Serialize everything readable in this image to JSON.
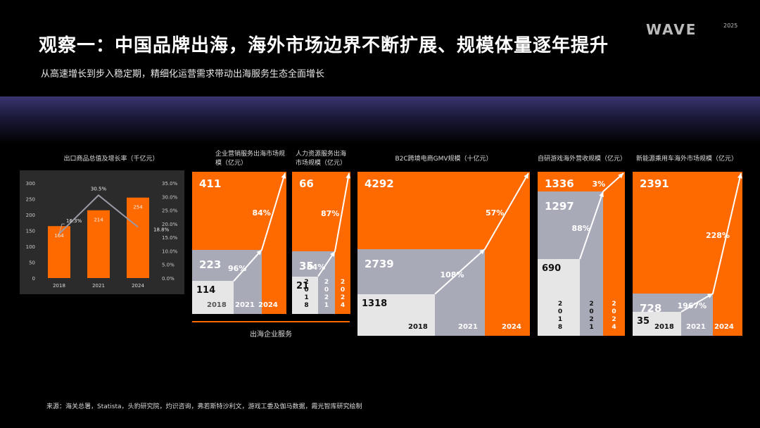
{
  "header": {
    "title": "观察一：中国品牌出海，海外市场边界不断扩展、规模体量逐年提升",
    "subtitle": "从高速增长到步入稳定期，精细化运营需求带动出海服务生态全面增长",
    "logo_text": "WAVE",
    "logo_year": "2025"
  },
  "colors": {
    "orange": "#ff6a00",
    "grey": "#a9aab8",
    "light": "#e6e6e6",
    "panel": "#2b2b2b"
  },
  "group_label": "出海企业服务",
  "source": "来源：海关总署，Statista，头豹研究院，灼识咨询，弗若斯特沙利文，游戏工委及伽马数据，霞光智库研究绘制",
  "chart_data": [
    {
      "type": "bar",
      "title": "出口商品总值及增长率（千亿元）",
      "categories": [
        "2018",
        "2021",
        "2024"
      ],
      "series": [
        {
          "values": [
            164,
            214,
            254
          ]
        },
        {
          "type": "line",
          "values": [
            16.3,
            30.5,
            18.8
          ],
          "value_labels": [
            "16.3%",
            "30.5%",
            "18.8%"
          ]
        }
      ],
      "value_labels": [
        "164",
        "214",
        "254"
      ],
      "ylim": [
        0,
        300
      ],
      "y_ticks": [
        "0",
        "50",
        "100",
        "150",
        "200",
        "250",
        "300"
      ],
      "y2lim": [
        0,
        35
      ],
      "y2_ticks": [
        "0.0%",
        "5.0%",
        "10.0%",
        "15.0%",
        "20.0%",
        "25.0%",
        "30.0%",
        "35.0%"
      ]
    },
    {
      "type": "area",
      "title": "企业营销服务出海市场规模（亿元）",
      "categories": [
        "2018",
        "2021",
        "2024"
      ],
      "values": [
        114,
        223,
        411
      ],
      "value_labels": [
        "114",
        "223",
        "411"
      ],
      "growth_labels": [
        "96%",
        "84%"
      ]
    },
    {
      "type": "area",
      "title": "人力资源服务出海市场规模（亿元）",
      "categories": [
        "2018",
        "2021",
        "2024"
      ],
      "values": [
        21,
        35,
        66
      ],
      "value_labels": [
        "21",
        "35",
        "66"
      ],
      "growth_labels": [
        "64%",
        "87%"
      ]
    },
    {
      "type": "area",
      "title": "B2C跨境电商GMV规模（十亿元）",
      "categories": [
        "2018",
        "2021",
        "2024"
      ],
      "values": [
        1318,
        2739,
        4292
      ],
      "value_labels": [
        "1318",
        "2739",
        "4292"
      ],
      "growth_labels": [
        "108%",
        "57%"
      ]
    },
    {
      "type": "area",
      "title": "自研游戏海外营收规模（亿元）",
      "categories": [
        "2018",
        "2021",
        "2024"
      ],
      "values": [
        690,
        1297,
        1336
      ],
      "value_labels": [
        "690",
        "1297",
        "1336"
      ],
      "growth_labels": [
        "88%",
        "3%"
      ]
    },
    {
      "type": "area",
      "title": "新能源乘用车海外市场规模（亿元）",
      "categories": [
        "2018",
        "2021",
        "2024"
      ],
      "values": [
        35,
        728,
        2391
      ],
      "value_labels": [
        "35",
        "728",
        "2391"
      ],
      "growth_labels": [
        "1967%",
        "228%"
      ]
    }
  ]
}
